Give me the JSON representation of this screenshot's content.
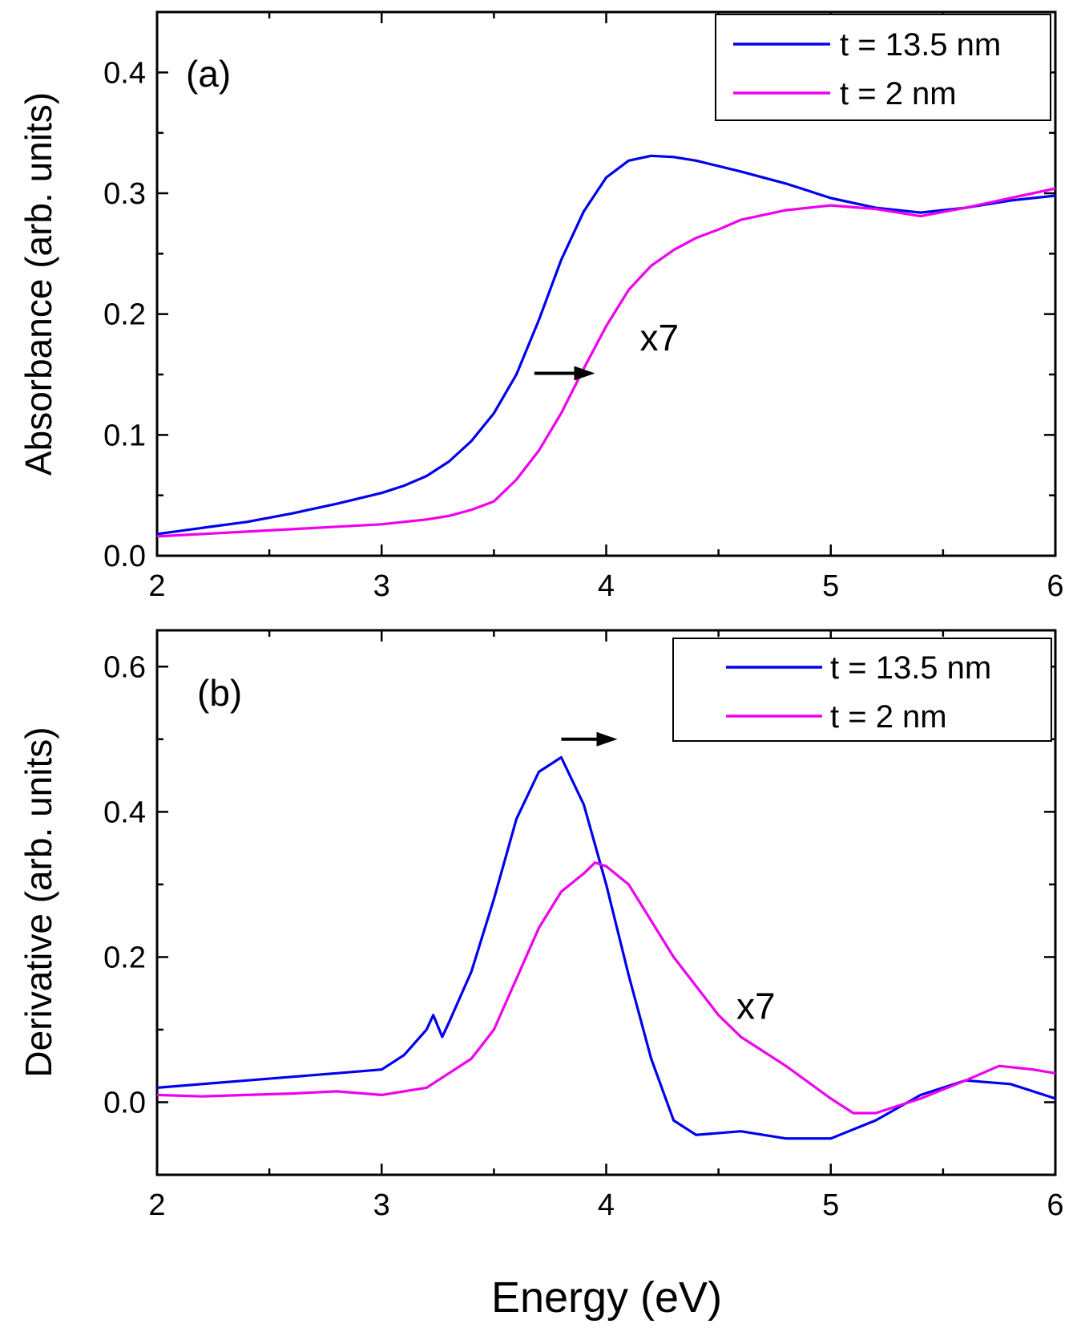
{
  "chart_data": [
    {
      "type": "line",
      "panel_label": "(a)",
      "xlabel": "",
      "ylabel": "Absorbance (arb. units)",
      "xlim": [
        2,
        6
      ],
      "ylim": [
        0,
        0.45
      ],
      "x_ticks": [
        2,
        3,
        4,
        5,
        6
      ],
      "x_tick_labels": [
        "2",
        "3",
        "4",
        "5",
        "6"
      ],
      "y_ticks": [
        0.0,
        0.1,
        0.2,
        0.3,
        0.4
      ],
      "y_tick_labels": [
        "0.0",
        "0.1",
        "0.2",
        "0.3",
        "0.4"
      ],
      "legend_position": "top-right",
      "annotation": {
        "text": "x7",
        "x": 4.15,
        "y": 0.17
      },
      "arrow": {
        "from": [
          3.68,
          0.151
        ],
        "to": [
          3.95,
          0.151
        ]
      },
      "series": [
        {
          "name": "t = 13.5 nm",
          "color": "#0000ee",
          "x": [
            2.0,
            2.2,
            2.4,
            2.6,
            2.8,
            3.0,
            3.1,
            3.2,
            3.3,
            3.4,
            3.5,
            3.6,
            3.7,
            3.8,
            3.9,
            4.0,
            4.1,
            4.2,
            4.3,
            4.4,
            4.6,
            4.8,
            5.0,
            5.2,
            5.4,
            5.6,
            5.8,
            6.0
          ],
          "y": [
            0.018,
            0.023,
            0.028,
            0.035,
            0.043,
            0.052,
            0.058,
            0.066,
            0.078,
            0.095,
            0.118,
            0.15,
            0.195,
            0.245,
            0.285,
            0.313,
            0.327,
            0.331,
            0.33,
            0.327,
            0.318,
            0.308,
            0.296,
            0.288,
            0.284,
            0.288,
            0.294,
            0.298
          ]
        },
        {
          "name": "t = 2 nm",
          "color": "#ee00ee",
          "x": [
            2.0,
            2.2,
            2.4,
            2.6,
            2.8,
            3.0,
            3.2,
            3.3,
            3.4,
            3.5,
            3.6,
            3.7,
            3.8,
            3.9,
            4.0,
            4.1,
            4.2,
            4.3,
            4.4,
            4.5,
            4.6,
            4.8,
            5.0,
            5.2,
            5.4,
            5.6,
            5.8,
            6.0
          ],
          "y": [
            0.016,
            0.018,
            0.02,
            0.022,
            0.024,
            0.026,
            0.03,
            0.033,
            0.038,
            0.045,
            0.063,
            0.087,
            0.118,
            0.155,
            0.19,
            0.22,
            0.24,
            0.253,
            0.263,
            0.27,
            0.278,
            0.286,
            0.29,
            0.287,
            0.281,
            0.288,
            0.296,
            0.304
          ]
        }
      ]
    },
    {
      "type": "line",
      "panel_label": "(b)",
      "xlabel": "Energy (eV)",
      "ylabel": "Derivative (arb. units)",
      "xlim": [
        2,
        6
      ],
      "ylim": [
        -0.1,
        0.65
      ],
      "x_ticks": [
        2,
        3,
        4,
        5,
        6
      ],
      "x_tick_labels": [
        "2",
        "3",
        "4",
        "5",
        "6"
      ],
      "y_ticks": [
        0.0,
        0.2,
        0.4,
        0.6
      ],
      "y_tick_labels": [
        "0.0",
        "0.2",
        "0.4",
        "0.6"
      ],
      "legend_position": "top-right",
      "annotation": {
        "text": "x7",
        "x": 4.58,
        "y": 0.115
      },
      "arrow": {
        "from": [
          3.8,
          0.5
        ],
        "to": [
          4.05,
          0.5
        ]
      },
      "series": [
        {
          "name": "t = 13.5 nm",
          "color": "#0000ee",
          "x": [
            2.0,
            2.2,
            2.4,
            2.6,
            2.8,
            3.0,
            3.1,
            3.2,
            3.23,
            3.27,
            3.3,
            3.4,
            3.5,
            3.6,
            3.7,
            3.8,
            3.9,
            4.0,
            4.1,
            4.2,
            4.3,
            4.4,
            4.6,
            4.8,
            5.0,
            5.2,
            5.4,
            5.6,
            5.8,
            6.0
          ],
          "y": [
            0.02,
            0.025,
            0.03,
            0.035,
            0.04,
            0.045,
            0.065,
            0.1,
            0.12,
            0.09,
            0.11,
            0.18,
            0.28,
            0.39,
            0.455,
            0.475,
            0.41,
            0.3,
            0.175,
            0.06,
            -0.025,
            -0.045,
            -0.04,
            -0.05,
            -0.05,
            -0.025,
            0.01,
            0.03,
            0.025,
            0.005
          ]
        },
        {
          "name": "t = 2 nm",
          "color": "#ee00ee",
          "x": [
            2.0,
            2.2,
            2.4,
            2.6,
            2.8,
            3.0,
            3.2,
            3.3,
            3.4,
            3.5,
            3.6,
            3.7,
            3.8,
            3.9,
            3.95,
            4.0,
            4.1,
            4.2,
            4.3,
            4.4,
            4.5,
            4.6,
            4.7,
            4.8,
            5.0,
            5.1,
            5.2,
            5.4,
            5.6,
            5.75,
            5.9,
            6.0
          ],
          "y": [
            0.01,
            0.008,
            0.01,
            0.012,
            0.015,
            0.01,
            0.02,
            0.04,
            0.06,
            0.1,
            0.17,
            0.24,
            0.29,
            0.315,
            0.33,
            0.325,
            0.3,
            0.25,
            0.2,
            0.16,
            0.12,
            0.09,
            0.07,
            0.05,
            0.005,
            -0.015,
            -0.015,
            0.005,
            0.03,
            0.05,
            0.045,
            0.04
          ]
        }
      ]
    }
  ]
}
